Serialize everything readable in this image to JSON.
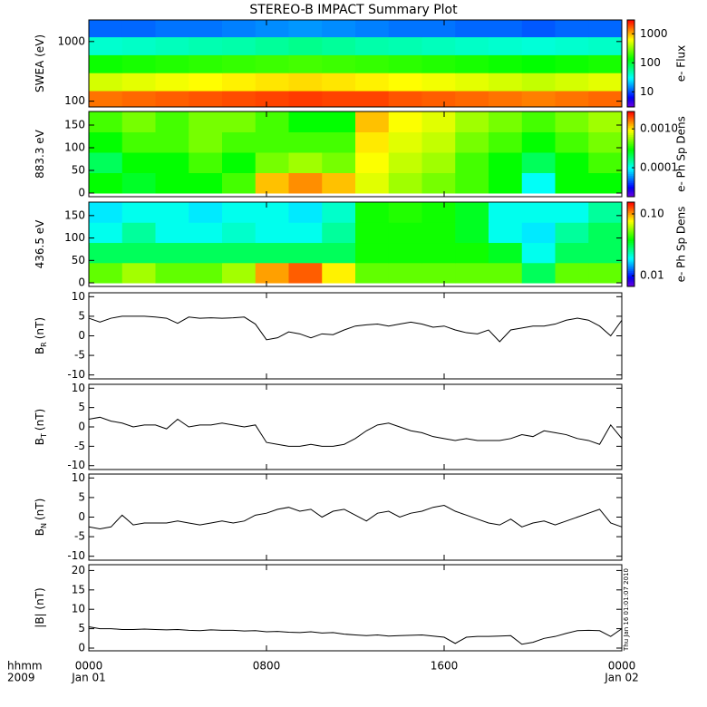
{
  "chart_data": {
    "title": "STEREO-B IMPACT Summary Plot",
    "timestamp": "Thu Jan 16 01:01:07 2010",
    "x_label_lines": [
      "hhmm",
      "2009"
    ],
    "xlim": [
      0,
      24
    ],
    "xticks": [
      {
        "value": 0,
        "label": "0000"
      },
      {
        "value": 8,
        "label": "0800"
      },
      {
        "value": 16,
        "label": "1600"
      },
      {
        "value": 24,
        "label": "0000"
      }
    ],
    "date_labels": [
      {
        "value": 0,
        "label": "Jan 01"
      },
      {
        "value": 24,
        "label": "Jan 02"
      }
    ],
    "heat_xbins": [
      0,
      1.5,
      3,
      4.5,
      6,
      7.5,
      9,
      10.5,
      12,
      13.5,
      15,
      16.5,
      18,
      19.5,
      21,
      22.5,
      24
    ],
    "x": [
      0,
      0.5,
      1,
      1.5,
      2,
      2.5,
      3,
      3.5,
      4,
      4.5,
      5,
      5.5,
      6,
      6.5,
      7,
      7.5,
      8,
      8.5,
      9,
      9.5,
      10,
      10.5,
      11,
      11.5,
      12,
      12.5,
      13,
      13.5,
      14,
      14.5,
      15,
      15.5,
      16,
      16.5,
      17,
      17.5,
      18,
      18.5,
      19,
      19.5,
      20,
      20.5,
      21,
      21.5,
      22,
      22.5,
      23,
      23.5,
      24
    ],
    "panels": [
      {
        "type": "heatmap",
        "ylabel": "SWEA (eV)",
        "ylog": true,
        "ylim": [
          80,
          2300
        ],
        "yticks": [
          100,
          1000
        ],
        "ybins": [
          80,
          150,
          300,
          600,
          1200,
          2300
        ],
        "z": [
          [
            1500,
            1600,
            1700,
            1800,
            1900,
            2000,
            2100,
            2000,
            2000,
            1800,
            1700,
            1600,
            1500,
            1400,
            1500,
            1600
          ],
          [
            500,
            550,
            600,
            650,
            700,
            750,
            800,
            750,
            700,
            650,
            600,
            550,
            500,
            450,
            500,
            550
          ],
          [
            150,
            160,
            170,
            180,
            190,
            200,
            210,
            200,
            190,
            180,
            170,
            160,
            150,
            140,
            150,
            160
          ],
          [
            40,
            42,
            45,
            48,
            50,
            55,
            60,
            55,
            50,
            48,
            45,
            42,
            40,
            38,
            40,
            42
          ],
          [
            12,
            12,
            13,
            13,
            14,
            15,
            16,
            15,
            14,
            13,
            13,
            12,
            12,
            11,
            12,
            12
          ]
        ],
        "colorbar": {
          "label": "e- Flux",
          "log": true,
          "zlim": [
            3,
            3000
          ],
          "zticks": [
            10,
            100,
            1000
          ]
        }
      },
      {
        "type": "heatmap",
        "ylabel": "883.3 eV",
        "ylog": false,
        "ylim": [
          -8,
          180
        ],
        "yticks": [
          0,
          50,
          100,
          150
        ],
        "ybins": [
          0,
          45,
          90,
          135,
          180
        ],
        "z": [
          [
            0.0003,
            0.00025,
            0.0003,
            0.0003,
            0.0004,
            0.0012,
            0.0015,
            0.0012,
            0.0008,
            0.0006,
            0.0005,
            0.0004,
            0.0003,
            0.0001,
            0.0003,
            0.0003
          ],
          [
            0.0002,
            0.0003,
            0.0003,
            0.0004,
            0.0003,
            0.0005,
            0.0006,
            0.0005,
            0.0009,
            0.0007,
            0.0006,
            0.0004,
            0.0003,
            0.0002,
            0.0003,
            0.0004
          ],
          [
            0.0003,
            0.0004,
            0.0004,
            0.0005,
            0.0004,
            0.0004,
            0.0004,
            0.0004,
            0.001,
            0.0008,
            0.0007,
            0.0005,
            0.0004,
            0.0003,
            0.0004,
            0.0005
          ],
          [
            0.0004,
            0.0005,
            0.0004,
            0.0005,
            0.0005,
            0.0004,
            0.0003,
            0.0003,
            0.0012,
            0.0009,
            0.0008,
            0.0006,
            0.0005,
            0.0004,
            0.0005,
            0.0006
          ]
        ],
        "colorbar": {
          "label": "e- Ph Sp Dens",
          "log": true,
          "zlim": [
            1.8e-05,
            0.0028
          ],
          "zticks": [
            {
              "value": 0.001,
              "label": "0.0010"
            },
            0.0001
          ]
        }
      },
      {
        "type": "heatmap",
        "ylabel": "436.5 eV",
        "ylog": false,
        "ylim": [
          -8,
          180
        ],
        "yticks": [
          0,
          50,
          100,
          150
        ],
        "ybins": [
          0,
          45,
          90,
          135,
          180
        ],
        "z": [
          [
            0.05,
            0.06,
            0.05,
            0.05,
            0.06,
            0.1,
            0.12,
            0.08,
            0.05,
            0.05,
            0.05,
            0.05,
            0.05,
            0.03,
            0.05,
            0.05
          ],
          [
            0.03,
            0.03,
            0.03,
            0.03,
            0.03,
            0.03,
            0.03,
            0.03,
            0.04,
            0.04,
            0.04,
            0.04,
            0.035,
            0.02,
            0.03,
            0.03
          ],
          [
            0.02,
            0.025,
            0.02,
            0.02,
            0.022,
            0.02,
            0.02,
            0.025,
            0.04,
            0.04,
            0.04,
            0.035,
            0.02,
            0.018,
            0.025,
            0.03
          ],
          [
            0.018,
            0.02,
            0.02,
            0.018,
            0.02,
            0.02,
            0.018,
            0.022,
            0.04,
            0.042,
            0.04,
            0.035,
            0.02,
            0.02,
            0.02,
            0.025
          ]
        ],
        "colorbar": {
          "label": "e- Ph Sp Dens",
          "log": true,
          "zlim": [
            0.0067,
            0.155
          ],
          "zticks": [
            {
              "value": 0.1,
              "label": "0.10"
            },
            0.01
          ]
        }
      },
      {
        "type": "line",
        "ylabel": "B",
        "ylabel_sub": "R",
        "ylabel_unit": "(nT)",
        "color": "#000000",
        "ylim": [
          -11,
          11
        ],
        "yticks": [
          -10,
          -5,
          0,
          5,
          10
        ],
        "values": [
          4.5,
          3.5,
          4.5,
          5,
          5,
          5,
          4.8,
          4.5,
          3.2,
          4.8,
          4.5,
          4.6,
          4.5,
          4.6,
          4.8,
          3,
          -1,
          -0.5,
          1,
          0.5,
          -0.5,
          0.5,
          0.3,
          1.5,
          2.5,
          2.8,
          3,
          2.5,
          3,
          3.5,
          3,
          2.2,
          2.5,
          1.5,
          0.8,
          0.5,
          1.5,
          -1.5,
          1.5,
          2,
          2.5,
          2.5,
          3,
          4,
          4.5,
          4,
          2.5,
          0,
          4
        ]
      },
      {
        "type": "line",
        "ylabel": "B",
        "ylabel_sub": "T",
        "ylabel_unit": "(nT)",
        "color": "#000000",
        "ylim": [
          -11,
          11
        ],
        "yticks": [
          -10,
          -5,
          0,
          5,
          10
        ],
        "values": [
          2,
          2.5,
          1.5,
          1,
          0,
          0.5,
          0.5,
          -0.5,
          2,
          0,
          0.5,
          0.5,
          1,
          0.5,
          0,
          0.5,
          -4,
          -4.5,
          -5,
          -5,
          -4.5,
          -5,
          -5,
          -4.5,
          -3,
          -1,
          0.5,
          1,
          0,
          -1,
          -1.5,
          -2.5,
          -3,
          -3.5,
          -3,
          -3.5,
          -3.5,
          -3.5,
          -3,
          -2,
          -2.5,
          -1,
          -1.5,
          -2,
          -3,
          -3.5,
          -4.5,
          0.5,
          -3
        ]
      },
      {
        "type": "line",
        "ylabel": "B",
        "ylabel_sub": "N",
        "ylabel_unit": "(nT)",
        "color": "#000000",
        "ylim": [
          -11,
          11
        ],
        "yticks": [
          -10,
          -5,
          0,
          5,
          10
        ],
        "values": [
          -2.5,
          -3,
          -2.5,
          0.5,
          -2,
          -1.5,
          -1.5,
          -1.5,
          -1,
          -1.5,
          -2,
          -1.5,
          -1,
          -1.5,
          -1,
          0.5,
          1,
          2,
          2.5,
          1.5,
          2,
          0,
          1.5,
          2,
          0.5,
          -1,
          1,
          1.5,
          0,
          1,
          1.5,
          2.5,
          3,
          1.5,
          0.5,
          -0.5,
          -1.5,
          -2,
          -0.5,
          -2.5,
          -1.5,
          -1,
          -2,
          -1,
          0,
          1,
          2,
          -1.5,
          -2.5
        ]
      },
      {
        "type": "line",
        "ylabel": "|B| (nT)",
        "color": "#000000",
        "ylim": [
          -0.7,
          21.5
        ],
        "yticks": [
          0,
          5,
          10,
          15,
          20
        ],
        "values": [
          5.5,
          5,
          5,
          4.8,
          4.8,
          4.9,
          4.8,
          4.7,
          4.8,
          4.6,
          4.5,
          4.7,
          4.6,
          4.6,
          4.4,
          4.5,
          4.2,
          4.3,
          4.1,
          4,
          4.2,
          3.9,
          4,
          3.6,
          3.4,
          3.2,
          3.4,
          3.1,
          3.2,
          3.3,
          3.4,
          3.1,
          2.8,
          1.2,
          2.8,
          3,
          3,
          3.1,
          3.2,
          1,
          1.5,
          2.5,
          3,
          3.8,
          4.5,
          4.6,
          4.5,
          3,
          5
        ]
      }
    ]
  }
}
